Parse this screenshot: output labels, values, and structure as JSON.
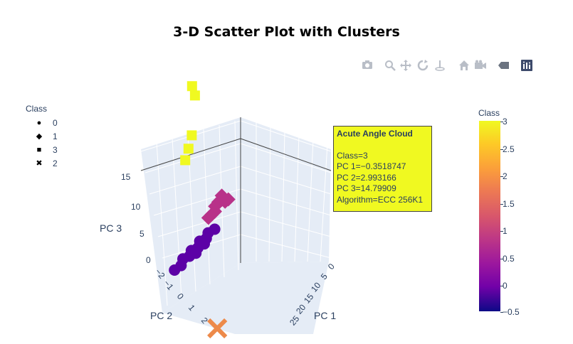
{
  "title": "3-D Scatter Plot with Clusters",
  "modebar": {
    "icons": [
      "camera-icon",
      "zoom-icon",
      "pan-icon",
      "orbit-icon",
      "turntable-icon",
      "home-icon",
      "camera-reset-icon",
      "hover-icon",
      "plotly-logo-icon"
    ]
  },
  "legend": {
    "title": "Class",
    "items": [
      {
        "label": "0",
        "symbol": "circle",
        "glyph": "●"
      },
      {
        "label": "1",
        "symbol": "diamond",
        "glyph": "◆"
      },
      {
        "label": "3",
        "symbol": "square",
        "glyph": "■"
      },
      {
        "label": "2",
        "symbol": "x",
        "glyph": "✖"
      }
    ]
  },
  "colorbar": {
    "title": "Class",
    "ticks": [
      "3",
      "2.5",
      "2",
      "1.5",
      "1",
      "0.5",
      "0",
      "−0.5"
    ],
    "range": [
      -0.5,
      3
    ],
    "colorscale": "plasma"
  },
  "tooltip": {
    "title": "Acute Angle Cloud",
    "lines": [
      "Class=3",
      "PC 1=−0.3518747",
      "PC 2=2.993166",
      "PC 3=14.79909",
      "Algorithm=ECC 256K1"
    ],
    "background": "#f0f921"
  },
  "chart_data": {
    "type": "scatter",
    "title": "3-D Scatter Plot with Clusters",
    "xlabel": "PC 1",
    "ylabel": "PC 2",
    "zlabel": "PC 3",
    "x_ticks": [
      "0",
      "5",
      "10",
      "15",
      "20",
      "25"
    ],
    "y_ticks": [
      "−2",
      "−1",
      "0",
      "1",
      "2"
    ],
    "z_ticks": [
      "0",
      "5",
      "10",
      "15"
    ],
    "series": [
      {
        "name": "0",
        "symbol": "circle",
        "color": "#5c01a6",
        "points": [
          [
            3,
            1,
            3.5
          ],
          [
            4,
            1.2,
            3.2
          ],
          [
            5,
            1.1,
            3.0
          ],
          [
            6,
            1.3,
            2.8
          ],
          [
            7,
            1.2,
            2.5
          ],
          [
            8,
            1.4,
            2.3
          ],
          [
            9,
            1.3,
            2.1
          ],
          [
            10,
            1.5,
            1.9
          ],
          [
            6.5,
            0.9,
            3.1
          ],
          [
            8.5,
            1.0,
            2.6
          ],
          [
            11,
            1.4,
            1.6
          ],
          [
            12,
            1.6,
            1.2
          ]
        ]
      },
      {
        "name": "1",
        "symbol": "diamond",
        "color": "#b83289",
        "points": [
          [
            -1,
            1,
            5.5
          ],
          [
            0,
            1.2,
            6
          ],
          [
            0.5,
            1.1,
            5.8
          ],
          [
            1,
            1.2,
            5.6
          ],
          [
            1.5,
            1.3,
            5.2
          ],
          [
            2,
            1.2,
            4.9
          ],
          [
            2.5,
            1.3,
            4.6
          ],
          [
            3,
            1.4,
            4.3
          ],
          [
            -0.5,
            1.1,
            5.3
          ],
          [
            1.2,
            1.0,
            6.1
          ]
        ]
      },
      {
        "name": "3",
        "symbol": "square",
        "color": "#f0f921",
        "points": [
          [
            -0.35,
            2.99,
            14.8
          ],
          [
            0,
            3.1,
            15.8
          ],
          [
            1,
            2.9,
            11
          ],
          [
            1.5,
            3,
            9.6
          ],
          [
            2,
            3.1,
            8.4
          ]
        ]
      },
      {
        "name": "2",
        "symbol": "x",
        "color": "#ed8a4a",
        "points": [
          [
            16,
            -2,
            0
          ]
        ]
      }
    ]
  }
}
